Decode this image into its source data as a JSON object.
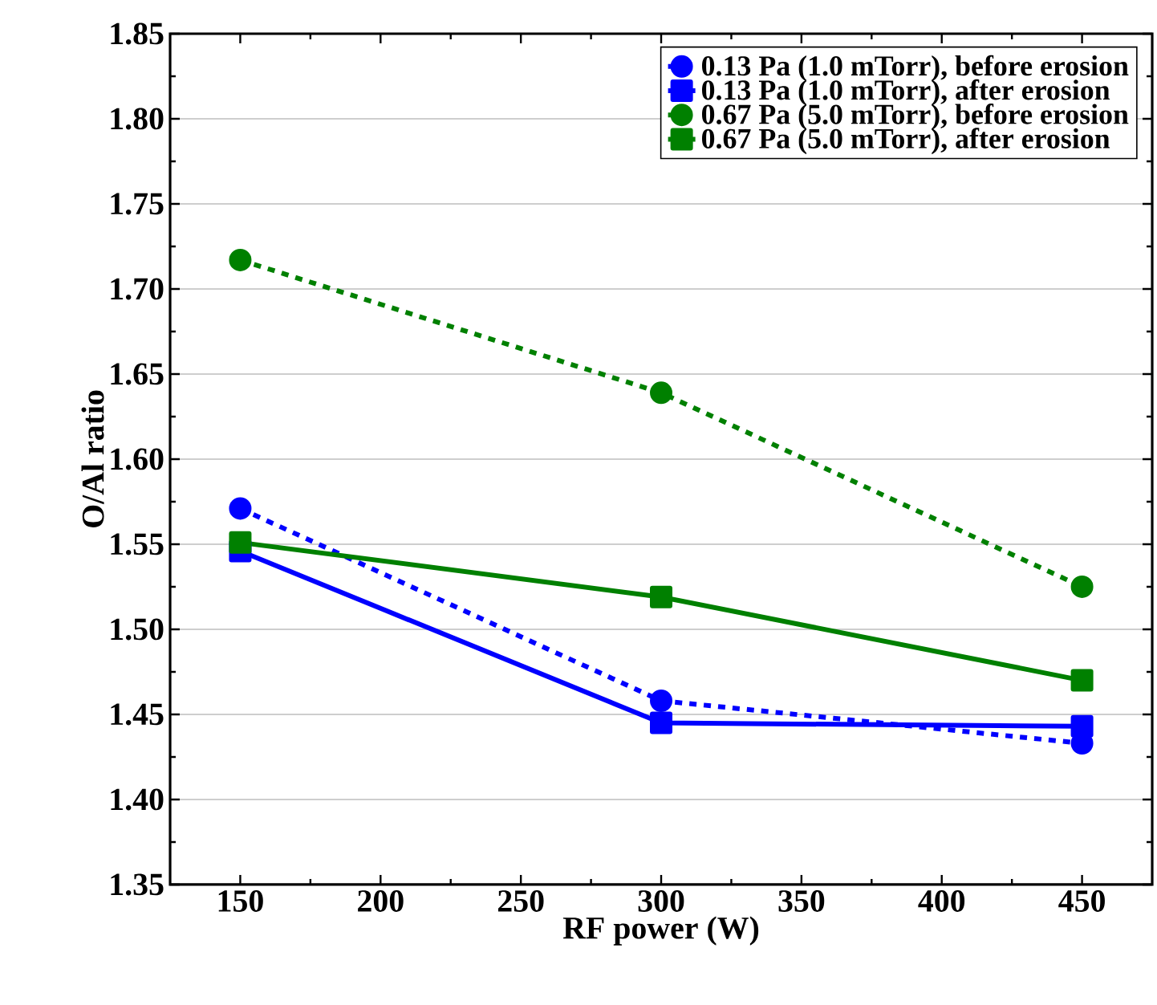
{
  "chart_data": {
    "type": "line",
    "xlabel": "RF power (W)",
    "ylabel": "O/Al ratio",
    "x": [
      150,
      300,
      450
    ],
    "series": [
      {
        "name": "0.13 Pa (1.0 mTorr), before erosion",
        "color": "#0000ff",
        "marker": "circle",
        "line_style": "dotted",
        "values": [
          1.571,
          1.458,
          1.433
        ]
      },
      {
        "name": "0.13 Pa (1.0 mTorr), after erosion",
        "color": "#0000ff",
        "marker": "square",
        "line_style": "solid",
        "values": [
          1.546,
          1.445,
          1.443
        ]
      },
      {
        "name": "0.67 Pa (5.0 mTorr), before erosion",
        "color": "#008000",
        "marker": "circle",
        "line_style": "dotted",
        "values": [
          1.717,
          1.639,
          1.525
        ]
      },
      {
        "name": "0.67 Pa (5.0 mTorr), after erosion",
        "color": "#008000",
        "marker": "square",
        "line_style": "solid",
        "values": [
          1.551,
          1.519,
          1.47
        ]
      }
    ],
    "xlim": [
      125,
      475
    ],
    "xticks": [
      150,
      200,
      250,
      300,
      350,
      400,
      450
    ],
    "ylim": [
      1.35,
      1.85
    ],
    "yticks": [
      1.35,
      {
        "value": 1.4,
        "label": "1.40"
      },
      1.45,
      {
        "value": 1.5,
        "label": "1.50"
      },
      1.55,
      {
        "value": 1.6,
        "label": "1.60"
      },
      1.65,
      {
        "value": 1.7,
        "label": "1.70"
      },
      1.75,
      {
        "value": 1.8,
        "label": "1.80"
      },
      1.85
    ],
    "grid": "y",
    "legend": "top right"
  }
}
